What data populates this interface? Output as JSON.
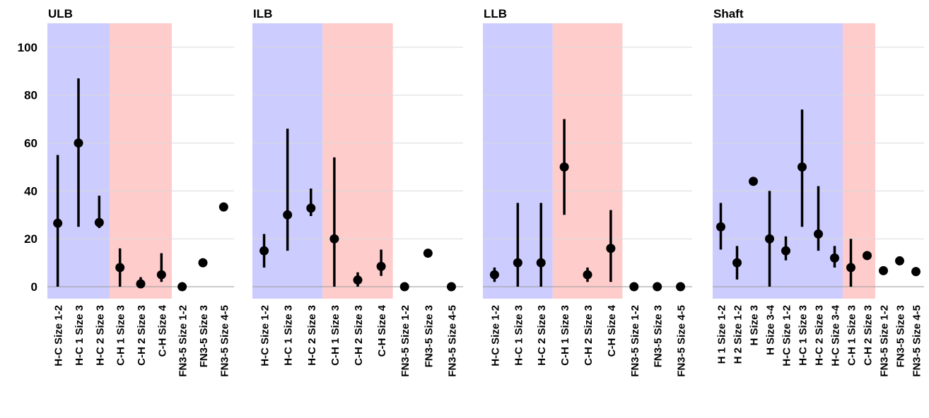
{
  "chart_data": [
    {
      "type": "scatter",
      "title": "ULB",
      "ylim": [
        -5,
        110
      ],
      "yticks": [
        0,
        20,
        40,
        60,
        80,
        100
      ],
      "grid": true,
      "categories": [
        "H-C Size 1-2",
        "H-C 1 Size 3",
        "H-C 2 Size 3",
        "C-H 1 Size 3",
        "C-H 2 Size 3",
        "C-H Size 4",
        "FN3-5 Size 1-2",
        "FN3-5 Size 3",
        "FN3-5 Size 4-5"
      ],
      "values": [
        26.5,
        60,
        26.8,
        8,
        1.2,
        5,
        0,
        10,
        33.3
      ],
      "low": [
        0,
        25,
        24.5,
        0,
        0,
        2,
        null,
        null,
        null
      ],
      "high": [
        55,
        87,
        38,
        16,
        4,
        14,
        null,
        null,
        null
      ],
      "bands": [
        {
          "from": 0,
          "to": 2,
          "color": "#ccccff"
        },
        {
          "from": 3,
          "to": 5,
          "color": "#ffcccc"
        }
      ]
    },
    {
      "type": "scatter",
      "title": "ILB",
      "ylim": [
        -5,
        110
      ],
      "yticks": [
        0,
        20,
        40,
        60,
        80,
        100
      ],
      "grid": true,
      "categories": [
        "H-C Size 1-2",
        "H-C 1 Size 3",
        "H-C 2 Size 3",
        "C-H 1 Size 3",
        "C-H 2 Size 3",
        "C-H Size 4",
        "FN3-5 Size 1-2",
        "FN3-5 Size 3",
        "FN3-5 Size 4-5"
      ],
      "values": [
        15,
        30,
        32.8,
        20,
        2.8,
        8.5,
        0,
        14,
        0
      ],
      "low": [
        8,
        15,
        29.5,
        0,
        0,
        4.5,
        null,
        null,
        null
      ],
      "high": [
        22,
        66,
        41,
        54,
        6,
        15.5,
        null,
        null,
        null
      ],
      "bands": [
        {
          "from": 0,
          "to": 2,
          "color": "#ccccff"
        },
        {
          "from": 3,
          "to": 5,
          "color": "#ffcccc"
        }
      ]
    },
    {
      "type": "scatter",
      "title": "LLB",
      "ylim": [
        -5,
        110
      ],
      "yticks": [
        0,
        20,
        40,
        60,
        80,
        100
      ],
      "grid": true,
      "categories": [
        "H-C Size 1-2",
        "H-C 1 Size 3",
        "H-C 2 Size 3",
        "C-H 1 Size 3",
        "C-H 2 Size 3",
        "C-H Size 4",
        "FN3-5 Size 1-2",
        "FN3-5 Size 3",
        "FN3-5 Size 4-5"
      ],
      "values": [
        5,
        10,
        10,
        50,
        5,
        16,
        0,
        0,
        0
      ],
      "low": [
        2,
        0,
        0,
        30,
        2,
        2,
        null,
        null,
        null
      ],
      "high": [
        8,
        35,
        35,
        70,
        8,
        32,
        null,
        null,
        null
      ],
      "bands": [
        {
          "from": 0,
          "to": 2,
          "color": "#ccccff"
        },
        {
          "from": 3,
          "to": 5,
          "color": "#ffcccc"
        }
      ]
    },
    {
      "type": "scatter",
      "title": "Shaft",
      "ylim": [
        -5,
        110
      ],
      "yticks": [
        0,
        20,
        40,
        60,
        80,
        100
      ],
      "grid": true,
      "categories": [
        "H 1 Size 1-2",
        "H 2 Size 1-2",
        "H Size 3",
        "H Size 3-4",
        "H-C Size 1-2",
        "H-C 1 Size 3",
        "H-C 2 Size 3",
        "H-C Size 3-4",
        "C-H 1 Size 3",
        "C-H 2 Size 3",
        "FN3-5 Size 1-2",
        "FN3-5 Size 3",
        "FN3-5 Size 4-5"
      ],
      "values": [
        25,
        10,
        44,
        20,
        15,
        50,
        22,
        12,
        8,
        13,
        6.7,
        10.8,
        6.3
      ],
      "low": [
        15.5,
        3,
        null,
        0,
        11,
        25,
        15,
        8,
        0,
        null,
        null,
        null,
        null
      ],
      "high": [
        35,
        17,
        null,
        40,
        21,
        74,
        42,
        17,
        20,
        null,
        null,
        null,
        null
      ],
      "bands": [
        {
          "from": 0,
          "to": 7,
          "color": "#ccccff"
        },
        {
          "from": 8,
          "to": 9,
          "color": "#ffcccc"
        }
      ]
    }
  ]
}
